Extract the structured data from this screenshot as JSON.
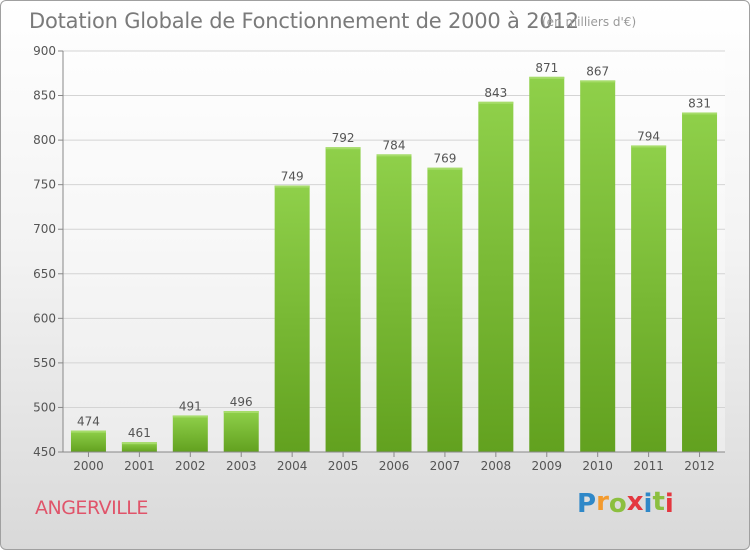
{
  "header": {
    "title": "Dotation Globale de Fonctionnement de 2000 à 2012",
    "subtitle": "(en milliers d'€)"
  },
  "footer": {
    "place": "ANGERVILLE",
    "logo": {
      "letters": [
        "P",
        "r",
        "o",
        "x",
        "i",
        "t",
        "i"
      ],
      "colors": [
        "#2f88c8",
        "#f39a2d",
        "#8cbf3f",
        "#e4373f",
        "#2f88c8",
        "#8cbf3f",
        "#e4373f"
      ]
    }
  },
  "chart_data": {
    "type": "bar",
    "categories": [
      "2000",
      "2001",
      "2002",
      "2003",
      "2004",
      "2005",
      "2006",
      "2007",
      "2008",
      "2009",
      "2010",
      "2011",
      "2012"
    ],
    "values": [
      474,
      461,
      491,
      496,
      749,
      792,
      784,
      769,
      843,
      871,
      867,
      794,
      831
    ],
    "title": "Dotation Globale de Fonctionnement de 2000 à 2012",
    "subtitle": "(en milliers d'€)",
    "ylim": [
      450,
      900
    ],
    "yticks": [
      450,
      500,
      550,
      600,
      650,
      700,
      750,
      800,
      850,
      900
    ],
    "grid": true,
    "bar_color": "#7fc138",
    "bar_color_dark": "#5e9e1d"
  }
}
